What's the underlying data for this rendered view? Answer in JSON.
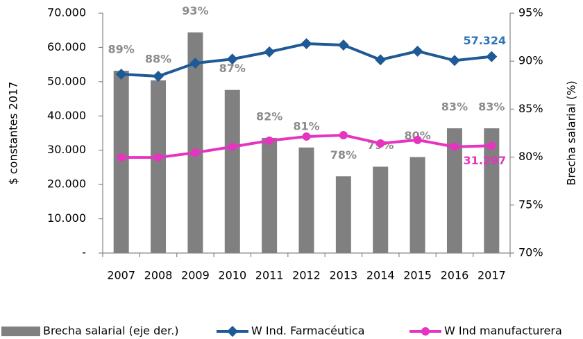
{
  "chart_data": {
    "type": "bar-line",
    "ylabel": "$ constantes  2017",
    "y2label": "Brecha salarial (%)",
    "categories": [
      "2007",
      "2008",
      "2009",
      "2010",
      "2011",
      "2012",
      "2013",
      "2014",
      "2015",
      "2016",
      "2017"
    ],
    "ylim": [
      0,
      70000
    ],
    "yticks": [
      {
        "value": 0,
        "label": "-"
      },
      {
        "value": 10000,
        "label": "10.000"
      },
      {
        "value": 20000,
        "label": "20.000"
      },
      {
        "value": 30000,
        "label": "30.000"
      },
      {
        "value": 40000,
        "label": "40.000"
      },
      {
        "value": 50000,
        "label": "50.000"
      },
      {
        "value": 60000,
        "label": "60.000"
      },
      {
        "value": 70000,
        "label": "70.000"
      }
    ],
    "y2lim": [
      70,
      95
    ],
    "y2ticks": [
      {
        "value": 70,
        "label": "70%"
      },
      {
        "value": 75,
        "label": "75%"
      },
      {
        "value": 80,
        "label": "80%"
      },
      {
        "value": 85,
        "label": "85%"
      },
      {
        "value": 90,
        "label": "90%"
      },
      {
        "value": 95,
        "label": "95%"
      }
    ],
    "grid": false,
    "series": [
      {
        "name": "Brecha salarial (eje der.)",
        "type": "bar",
        "axis": "y2",
        "color": "#808080",
        "values": [
          89,
          88,
          93,
          87,
          82,
          81,
          78,
          79,
          80,
          83,
          83
        ],
        "value_labels": [
          "89%",
          "88%",
          "93%",
          "87%",
          "82%",
          "81%",
          "78%",
          "79%",
          "80%",
          "83%",
          "83%"
        ]
      },
      {
        "name": "W Ind. Farmacéutica",
        "type": "line",
        "color": "#1f5a96",
        "label_color": "#2e75b6",
        "values": [
          52200,
          51600,
          55400,
          56600,
          58700,
          61100,
          60700,
          56400,
          58900,
          56200,
          57324
        ],
        "value_labels": [
          null,
          null,
          null,
          null,
          null,
          null,
          null,
          null,
          null,
          null,
          "57.324"
        ]
      },
      {
        "name": "W Ind manufacturera",
        "type": "line",
        "color": "#e535c0",
        "label_color": "#e535c0",
        "values": [
          27900,
          27900,
          29300,
          31000,
          32800,
          34000,
          34400,
          32000,
          33000,
          31000,
          31297
        ],
        "value_labels": [
          null,
          null,
          null,
          null,
          null,
          null,
          null,
          null,
          null,
          null,
          "31.297"
        ]
      }
    ]
  }
}
